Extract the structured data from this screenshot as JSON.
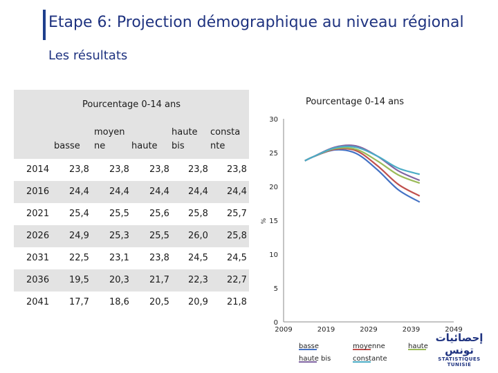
{
  "header": {
    "title": "Etape 6: Projection démographique au niveau régional",
    "subtitle": "Les résultats"
  },
  "table": {
    "caption": "Pourcentage 0-14 ans",
    "columns": [
      {
        "line1": "",
        "line2": "basse"
      },
      {
        "line1": "moyen",
        "line2": "ne"
      },
      {
        "line1": "",
        "line2": "haute"
      },
      {
        "line1": "haute",
        "line2": "bis"
      },
      {
        "line1": "consta",
        "line2": "nte"
      }
    ],
    "rows": [
      {
        "year": "2014",
        "values": [
          "23,8",
          "23,8",
          "23,8",
          "23,8",
          "23,8"
        ]
      },
      {
        "year": "2016",
        "values": [
          "24,4",
          "24,4",
          "24,4",
          "24,4",
          "24,4"
        ]
      },
      {
        "year": "2021",
        "values": [
          "25,4",
          "25,5",
          "25,6",
          "25,8",
          "25,7"
        ]
      },
      {
        "year": "2026",
        "values": [
          "24,9",
          "25,3",
          "25,5",
          "26,0",
          "25,8"
        ]
      },
      {
        "year": "2031",
        "values": [
          "22,5",
          "23,1",
          "23,8",
          "24,5",
          "24,5"
        ]
      },
      {
        "year": "2036",
        "values": [
          "19,5",
          "20,3",
          "21,7",
          "22,3",
          "22,7"
        ]
      },
      {
        "year": "2041",
        "values": [
          "17,7",
          "18,6",
          "20,5",
          "20,9",
          "21,8"
        ]
      }
    ]
  },
  "chart_data": {
    "type": "line",
    "title": "Pourcentage 0-14 ans",
    "xlabel": "",
    "ylabel": "%",
    "x": [
      2014,
      2016,
      2021,
      2026,
      2031,
      2036,
      2041
    ],
    "xticks": [
      "2009",
      "2019",
      "2029",
      "2039",
      "2049"
    ],
    "xlim": [
      2009,
      2049
    ],
    "yticks": [
      "0",
      "5",
      "10",
      "15",
      "20",
      "25",
      "30"
    ],
    "ylim": [
      0,
      30
    ],
    "legend_position": "bottom",
    "series": [
      {
        "name": "basse",
        "color": "#4472c4",
        "values": [
          23.8,
          24.4,
          25.4,
          24.9,
          22.5,
          19.5,
          17.7
        ]
      },
      {
        "name": "moyenne",
        "color": "#c0504d",
        "values": [
          23.8,
          24.4,
          25.5,
          25.3,
          23.1,
          20.3,
          18.6
        ]
      },
      {
        "name": "haute",
        "color": "#9bbb59",
        "values": [
          23.8,
          24.4,
          25.6,
          25.5,
          23.8,
          21.7,
          20.5
        ]
      },
      {
        "name": "haute bis",
        "color": "#8064a2",
        "values": [
          23.8,
          24.4,
          25.8,
          26.0,
          24.5,
          22.3,
          20.9
        ]
      },
      {
        "name": "constante",
        "color": "#4bacc6",
        "values": [
          23.8,
          24.4,
          25.7,
          25.8,
          24.5,
          22.7,
          21.8
        ]
      }
    ]
  },
  "logo": {
    "arabic": "إحصائيات تونس",
    "french": "STATISTIQUES TUNISIE"
  }
}
